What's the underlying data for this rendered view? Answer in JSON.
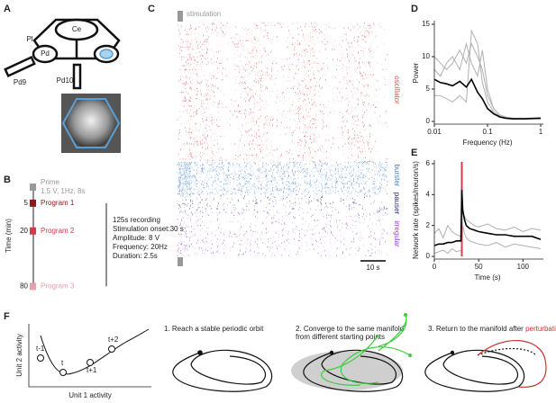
{
  "panel_labels": [
    "A",
    "B",
    "C",
    "D",
    "E",
    "F"
  ],
  "diagram": {
    "labels": [
      "Ce",
      "Pl",
      "Pd",
      "Pd9",
      "Pd10"
    ]
  },
  "protocol": {
    "prime": "Prime",
    "prime_params": "1.5 V, 1Hz, 8s",
    "programs": [
      "Program 1",
      "Program 2",
      "Program 3"
    ],
    "program_colors": [
      "#8b1a1a",
      "#d9364a",
      "#e8a0aa"
    ],
    "time_ticks": [
      5,
      20,
      80
    ],
    "time_label": "Time (min)",
    "details": [
      "125s recording",
      "Stimulation onset:30 s",
      "Amplitude: 8 V",
      "Frequency: 20Hz",
      "Duration: 2.5s"
    ]
  },
  "raster": {
    "stimulation": "stimulation",
    "classes": [
      "oscillator",
      "burster",
      "pauser",
      "irregular"
    ],
    "class_colors": [
      "#e0505a",
      "#4a7fc0",
      "#2c2f7a",
      "#a040c8"
    ],
    "scale": "10 s"
  },
  "chart_data": [
    {
      "type": "line",
      "xlabel": "Frequency (Hz)",
      "ylabel": "Power",
      "xscale": "log",
      "xlim": [
        0.01,
        1
      ],
      "ylim": [
        0,
        15
      ],
      "xticks": [
        0.01,
        0.1,
        1
      ],
      "yticks": [
        0,
        5,
        10,
        15
      ],
      "x": [
        0.01,
        0.013,
        0.017,
        0.022,
        0.03,
        0.04,
        0.05,
        0.065,
        0.08,
        0.1,
        0.13,
        0.17,
        0.22,
        0.3,
        0.5,
        1
      ],
      "series": [
        {
          "color": "#b0b0b0",
          "values": [
            10,
            9,
            8,
            9,
            11,
            9,
            12,
            10,
            8,
            4,
            2,
            1,
            0.6,
            0.5,
            0.5,
            0.6
          ]
        },
        {
          "color": "#b0b0b0",
          "values": [
            4,
            4,
            3.5,
            3,
            4,
            3,
            14,
            12,
            6,
            3,
            1.5,
            0.8,
            0.5,
            0.4,
            0.4,
            0.4
          ]
        },
        {
          "color": "#b0b0b0",
          "values": [
            8,
            7,
            9,
            10,
            8,
            12,
            9,
            7,
            11,
            5,
            2,
            1,
            0.7,
            0.5,
            0.4,
            0.5
          ]
        },
        {
          "color": "#000000",
          "values": [
            6.5,
            6,
            5.8,
            5.5,
            6.2,
            5.3,
            6.5,
            4.5,
            3.5,
            2,
            1.2,
            0.7,
            0.5,
            0.4,
            0.4,
            0.5
          ]
        }
      ]
    },
    {
      "type": "line",
      "xlabel": "Time (s)",
      "ylabel": "Network rate (spikes/neuron/s)",
      "xlim": [
        0,
        120
      ],
      "ylim": [
        0,
        6
      ],
      "xticks": [
        0,
        50,
        100
      ],
      "yticks": [
        0,
        2,
        4,
        6
      ],
      "highlight": [
        30,
        32
      ],
      "highlight_color": "#d04050",
      "x": [
        0,
        5,
        10,
        15,
        20,
        25,
        30,
        31,
        32,
        34,
        36,
        40,
        45,
        50,
        60,
        70,
        80,
        90,
        100,
        110,
        120
      ],
      "series": [
        {
          "color": "#b0b0b0",
          "values": [
            1.5,
            1.8,
            1.2,
            2.0,
            1.6,
            1.4,
            1.3,
            3.5,
            2.8,
            2.6,
            2.4,
            2.2,
            2.0,
            1.9,
            2.1,
            1.8,
            1.7,
            1.9,
            1.6,
            1.8,
            1.7
          ]
        },
        {
          "color": "#b0b0b0",
          "values": [
            0.2,
            0.3,
            0.4,
            0.2,
            0.5,
            0.3,
            0.4,
            3.0,
            2.0,
            1.5,
            1.2,
            1.0,
            0.9,
            0.8,
            0.7,
            0.9,
            0.6,
            0.8,
            0.7,
            0.6,
            0.5
          ]
        },
        {
          "color": "#000000",
          "values": [
            0.7,
            0.8,
            0.8,
            0.9,
            0.9,
            1.0,
            1.0,
            4.3,
            3.0,
            2.4,
            2.0,
            1.8,
            1.7,
            1.6,
            1.5,
            1.4,
            1.4,
            1.3,
            1.3,
            1.3,
            1.1
          ]
        }
      ]
    }
  ],
  "panel_f": {
    "xlabel": "Unit 1 activity",
    "ylabel": "Unit 2 activity",
    "points": [
      "t-1",
      "t",
      "t+1",
      "t+2"
    ],
    "caption1": "1. Reach a stable periodic orbit",
    "caption2": [
      "2. Converge to the same manifold",
      "from different starting points"
    ],
    "caption3": "3. Return to the manifold after ",
    "caption3_red": "perturbation"
  }
}
